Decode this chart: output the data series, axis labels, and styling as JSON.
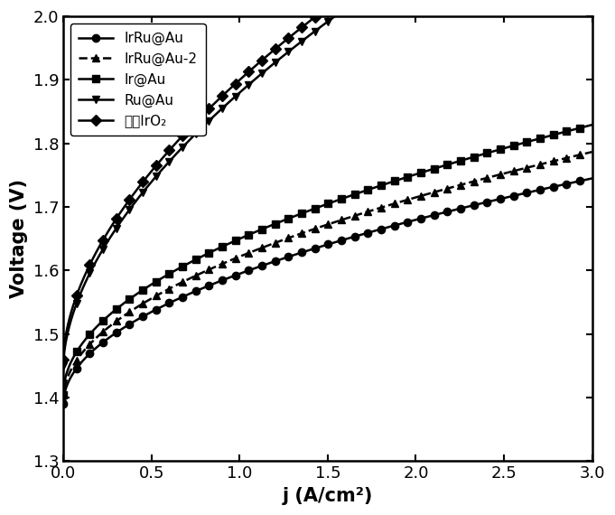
{
  "title": "",
  "xlabel": "j (A/cm²)",
  "ylabel": "Voltage (V)",
  "xlim": [
    0,
    3.0
  ],
  "ylim": [
    1.3,
    2.0
  ],
  "xticks": [
    0.0,
    0.5,
    1.0,
    1.5,
    2.0,
    2.5,
    3.0
  ],
  "yticks": [
    1.3,
    1.4,
    1.5,
    1.6,
    1.7,
    1.8,
    1.9,
    2.0
  ],
  "series": [
    {
      "label": "IrRu@Au",
      "marker": "o",
      "linestyle": "-",
      "color": "#000000",
      "markersize": 6,
      "linewidth": 1.8,
      "V0": 1.39,
      "k": 0.205,
      "n": 0.5
    },
    {
      "label": "IrRu@Au-2",
      "marker": "^",
      "linestyle": "--",
      "color": "#000000",
      "markersize": 6,
      "linewidth": 1.8,
      "V0": 1.397,
      "k": 0.225,
      "n": 0.5
    },
    {
      "label": "Ir@Au",
      "marker": "s",
      "linestyle": "-",
      "color": "#000000",
      "markersize": 6,
      "linewidth": 1.8,
      "V0": 1.405,
      "k": 0.245,
      "n": 0.5
    },
    {
      "label": "Ru@Au",
      "marker": "v",
      "linestyle": "-",
      "color": "#000000",
      "markersize": 6,
      "linewidth": 1.8,
      "V0": 1.45,
      "k": 0.43,
      "n": 0.57
    },
    {
      "label": "商业IrO₂",
      "marker": "D",
      "linestyle": "-",
      "color": "#000000",
      "markersize": 6,
      "linewidth": 1.8,
      "V0": 1.46,
      "k": 0.44,
      "n": 0.57
    }
  ],
  "legend_loc": "upper left",
  "legend_fontsize": 11,
  "axis_fontsize": 15,
  "tick_fontsize": 13,
  "markevery": 15,
  "background_color": "#ffffff"
}
